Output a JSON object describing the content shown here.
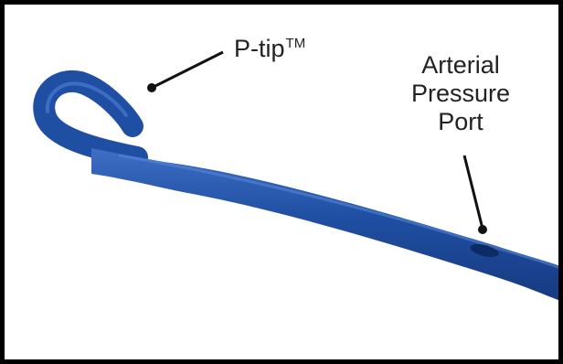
{
  "labels": {
    "ptip": {
      "text": "P-tip",
      "mark": "TM"
    },
    "port": {
      "line1": "Arterial",
      "line2": "Pressure",
      "line3": "Port"
    }
  },
  "colors": {
    "catheter": "#1f4fa3",
    "catheter_highlight": "#4a7ad0",
    "catheter_shadow": "#163a80",
    "frame": "#000000",
    "leader_line": "#111111"
  }
}
